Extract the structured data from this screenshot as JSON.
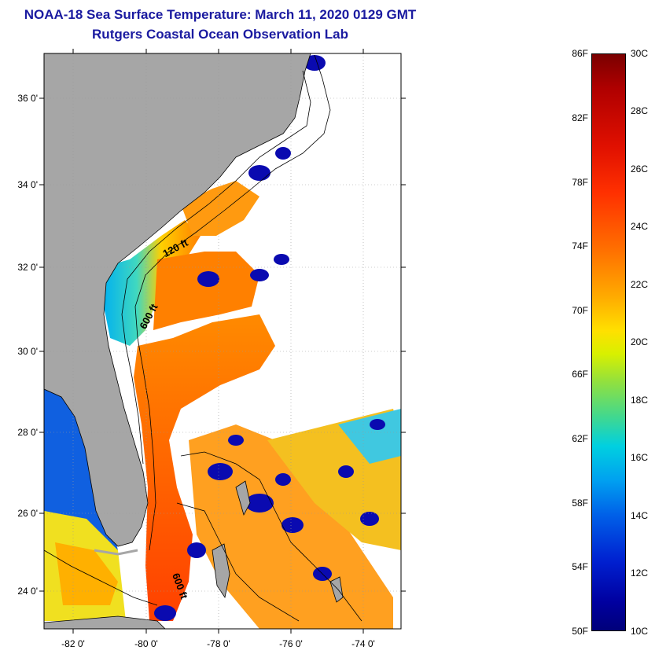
{
  "header": {
    "title": "NOAA-18 Sea Surface Temperature:  March 11, 2020 0129 GMT",
    "subtitle": "Rutgers Coastal Ocean Observation Lab"
  },
  "map": {
    "lat_labels": [
      "36 0'",
      "34 0'",
      "32 0'",
      "30 0'",
      "28 0'",
      "26 0'",
      "24 0'"
    ],
    "lon_labels": [
      "-82 0'",
      "-80 0'",
      "-78 0'",
      "-76 0'",
      "-74 0'"
    ],
    "contour_labels": [
      "120 ft",
      "600 ft",
      "600 ft"
    ],
    "colors": {
      "land": "#a6a6a6",
      "cloud": "#ffffff",
      "cold": "#0000c0",
      "warm": "#ff5a00"
    }
  },
  "colorbar": {
    "fahrenheit_labels": [
      "86F",
      "82F",
      "78F",
      "74F",
      "70F",
      "66F",
      "62F",
      "58F",
      "54F",
      "50F"
    ],
    "celsius_labels": [
      "30C",
      "28C",
      "26C",
      "24C",
      "22C",
      "20C",
      "18C",
      "16C",
      "14C",
      "12C",
      "10C"
    ]
  }
}
